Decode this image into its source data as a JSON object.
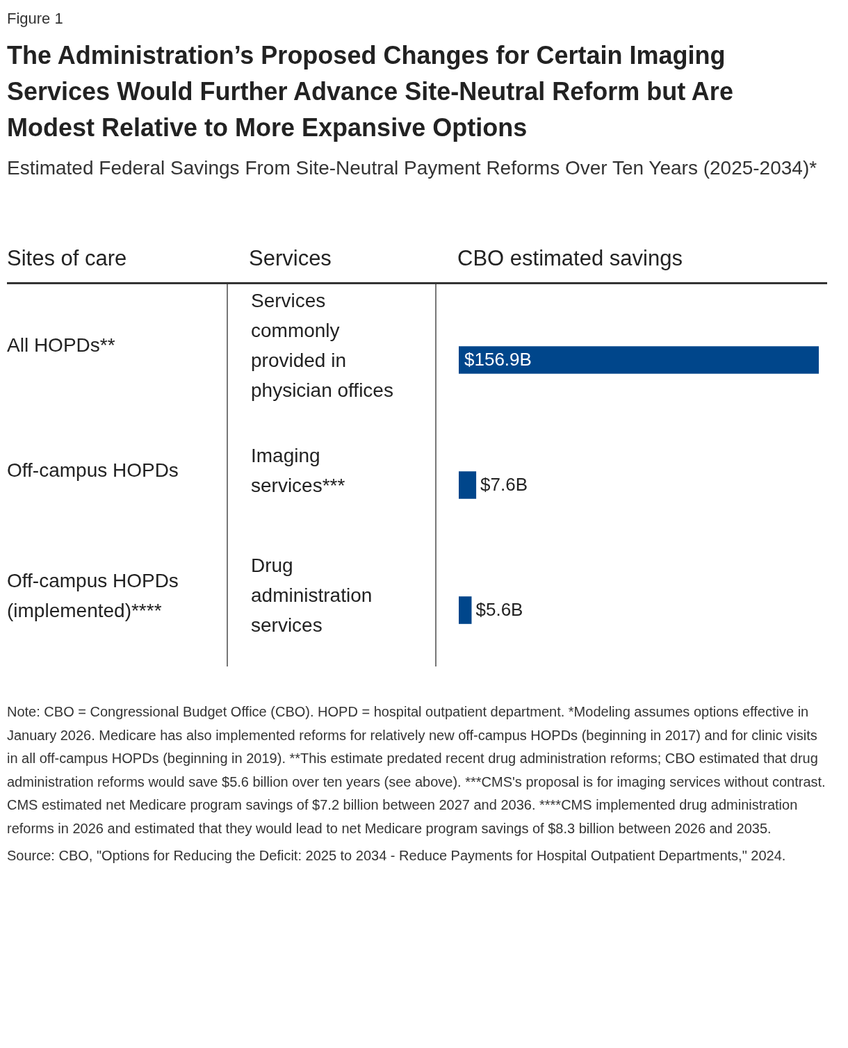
{
  "chart_data": {
    "type": "bar",
    "orientation": "horizontal",
    "title": "The Administration’s Proposed Changes for Certain Imaging Services Would Further Advance Site-Neutral Reform but Are Modest Relative to More Expansive Options",
    "subtitle": "Estimated Federal Savings From Site-Neutral Payment Reforms Over Ten Years (2025-2034)*",
    "ylabel": "Sites of care",
    "xlabel": "CBO estimated savings",
    "categories": [
      "All HOPDs**",
      "Off-campus HOPDs",
      "Off-campus HOPDs (implemented)****"
    ],
    "values": [
      156.9,
      7.6,
      5.6
    ],
    "value_labels": [
      "$156.9B",
      "$7.6B",
      "$5.6B"
    ],
    "color": "#00468b",
    "annotations": [
      "Services",
      "Services commonly provided in physician offices",
      "Imaging services***",
      "Drug administration services",
      "Note: CBO = Congressional Budget Office (CBO). HOPD = hospital outpatient department. *Modeling assumes options effective in January 2026. Medicare has also implemented reforms for relatively new off-campus HOPDs (beginning in 2017) and for clinic visits in all off-campus HOPDs (beginning in 2019). **This estimate predated recent drug administration reforms; CBO estimated that drug administration reforms would save $5.6 billion over ten years (see above). ***CMS's proposal is for imaging services without contrast. CMS estimated net Medicare program savings of $7.2 billion between 2027 and 2036. ****CMS implemented drug administration reforms in 2026 and estimated that they would lead to net Medicare program savings of $8.3 billion between 2026 and 2035.",
      "Source: CBO, \"Options for Reducing the Deficit: 2025 to 2034 - Reduce Payments for Hospital Outpatient Departments,\" 2024.",
      "Figure 1"
    ]
  }
}
